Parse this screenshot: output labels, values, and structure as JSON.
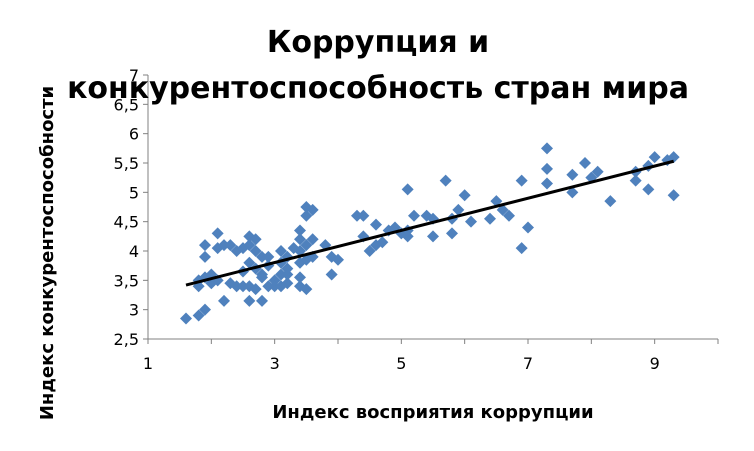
{
  "chart_data": {
    "type": "scatter",
    "title_lines": [
      "Коррупция и",
      "конкурентоспособность стран мира"
    ],
    "xlabel": "Индекс восприятия коррупции",
    "ylabel": "Индекс конкурентоспособности",
    "xlim": [
      1,
      10
    ],
    "ylim": [
      2.5,
      7
    ],
    "x_ticks": [
      "1",
      "3",
      "5",
      "7",
      "9"
    ],
    "x_tick_values": [
      1,
      3,
      5,
      7,
      9
    ],
    "y_ticks": [
      "2,5",
      "3",
      "3,5",
      "4",
      "4,5",
      "5",
      "5,5",
      "6",
      "6,5",
      "7"
    ],
    "y_tick_values": [
      2.5,
      3,
      3.5,
      4,
      4.5,
      5,
      5.5,
      6,
      6.5,
      7
    ],
    "grid": false,
    "marker": "diamond",
    "marker_color": "#4f81bd",
    "trendline_color": "#000000",
    "trendline": {
      "x": [
        1.6,
        9.3
      ],
      "y": [
        3.42,
        5.53
      ]
    },
    "points": [
      [
        1.6,
        2.85
      ],
      [
        1.8,
        2.9
      ],
      [
        1.9,
        3.0
      ],
      [
        1.8,
        3.4
      ],
      [
        1.8,
        3.5
      ],
      [
        1.9,
        3.55
      ],
      [
        2.0,
        3.45
      ],
      [
        2.1,
        3.5
      ],
      [
        2.0,
        3.6
      ],
      [
        1.9,
        3.9
      ],
      [
        1.9,
        4.1
      ],
      [
        2.1,
        4.05
      ],
      [
        2.1,
        4.3
      ],
      [
        2.2,
        4.1
      ],
      [
        2.3,
        4.1
      ],
      [
        2.2,
        3.15
      ],
      [
        2.3,
        3.45
      ],
      [
        2.4,
        3.4
      ],
      [
        2.5,
        3.4
      ],
      [
        2.5,
        3.65
      ],
      [
        2.4,
        4.0
      ],
      [
        2.5,
        4.05
      ],
      [
        2.6,
        4.1
      ],
      [
        2.6,
        4.25
      ],
      [
        2.7,
        4.2
      ],
      [
        2.7,
        4.0
      ],
      [
        2.8,
        3.9
      ],
      [
        2.6,
        3.8
      ],
      [
        2.7,
        3.7
      ],
      [
        2.8,
        3.6
      ],
      [
        2.8,
        3.55
      ],
      [
        2.6,
        3.4
      ],
      [
        2.7,
        3.35
      ],
      [
        2.6,
        3.15
      ],
      [
        2.8,
        3.15
      ],
      [
        2.9,
        3.4
      ],
      [
        2.9,
        3.9
      ],
      [
        2.9,
        3.75
      ],
      [
        3.0,
        3.5
      ],
      [
        3.1,
        3.6
      ],
      [
        3.0,
        3.4
      ],
      [
        3.1,
        3.4
      ],
      [
        3.2,
        3.45
      ],
      [
        3.2,
        3.6
      ],
      [
        3.1,
        3.8
      ],
      [
        3.2,
        3.9
      ],
      [
        3.3,
        4.05
      ],
      [
        3.1,
        4.0
      ],
      [
        3.2,
        3.7
      ],
      [
        3.4,
        3.55
      ],
      [
        3.4,
        3.4
      ],
      [
        3.5,
        3.35
      ],
      [
        3.4,
        3.8
      ],
      [
        3.5,
        3.85
      ],
      [
        3.6,
        3.9
      ],
      [
        3.4,
        4.0
      ],
      [
        3.4,
        4.2
      ],
      [
        3.4,
        4.35
      ],
      [
        3.5,
        4.1
      ],
      [
        3.6,
        4.2
      ],
      [
        3.5,
        4.6
      ],
      [
        3.5,
        4.75
      ],
      [
        3.6,
        4.7
      ],
      [
        3.8,
        4.1
      ],
      [
        3.9,
        3.9
      ],
      [
        3.9,
        3.6
      ],
      [
        4.0,
        3.85
      ],
      [
        4.3,
        4.6
      ],
      [
        4.4,
        4.6
      ],
      [
        4.4,
        4.25
      ],
      [
        4.5,
        4.0
      ],
      [
        4.6,
        4.1
      ],
      [
        4.6,
        4.45
      ],
      [
        4.7,
        4.15
      ],
      [
        4.8,
        4.35
      ],
      [
        4.9,
        4.4
      ],
      [
        5.0,
        4.3
      ],
      [
        5.1,
        4.25
      ],
      [
        5.1,
        5.05
      ],
      [
        5.1,
        4.35
      ],
      [
        5.2,
        4.6
      ],
      [
        5.4,
        4.6
      ],
      [
        5.5,
        4.25
      ],
      [
        5.5,
        4.55
      ],
      [
        5.7,
        5.2
      ],
      [
        5.8,
        4.3
      ],
      [
        5.8,
        4.55
      ],
      [
        5.9,
        4.7
      ],
      [
        6.0,
        4.95
      ],
      [
        6.1,
        4.5
      ],
      [
        6.4,
        4.55
      ],
      [
        6.5,
        4.85
      ],
      [
        6.6,
        4.7
      ],
      [
        6.7,
        4.6
      ],
      [
        6.9,
        4.05
      ],
      [
        6.9,
        5.2
      ],
      [
        7.0,
        4.4
      ],
      [
        7.3,
        5.15
      ],
      [
        7.3,
        5.4
      ],
      [
        7.3,
        5.75
      ],
      [
        7.7,
        5.0
      ],
      [
        7.7,
        5.3
      ],
      [
        7.9,
        5.5
      ],
      [
        8.0,
        5.25
      ],
      [
        8.1,
        5.35
      ],
      [
        8.3,
        4.85
      ],
      [
        8.7,
        5.2
      ],
      [
        8.7,
        5.35
      ],
      [
        8.9,
        5.05
      ],
      [
        8.9,
        5.45
      ],
      [
        9.0,
        5.6
      ],
      [
        9.2,
        5.55
      ],
      [
        9.3,
        5.6
      ],
      [
        9.3,
        4.95
      ]
    ]
  }
}
